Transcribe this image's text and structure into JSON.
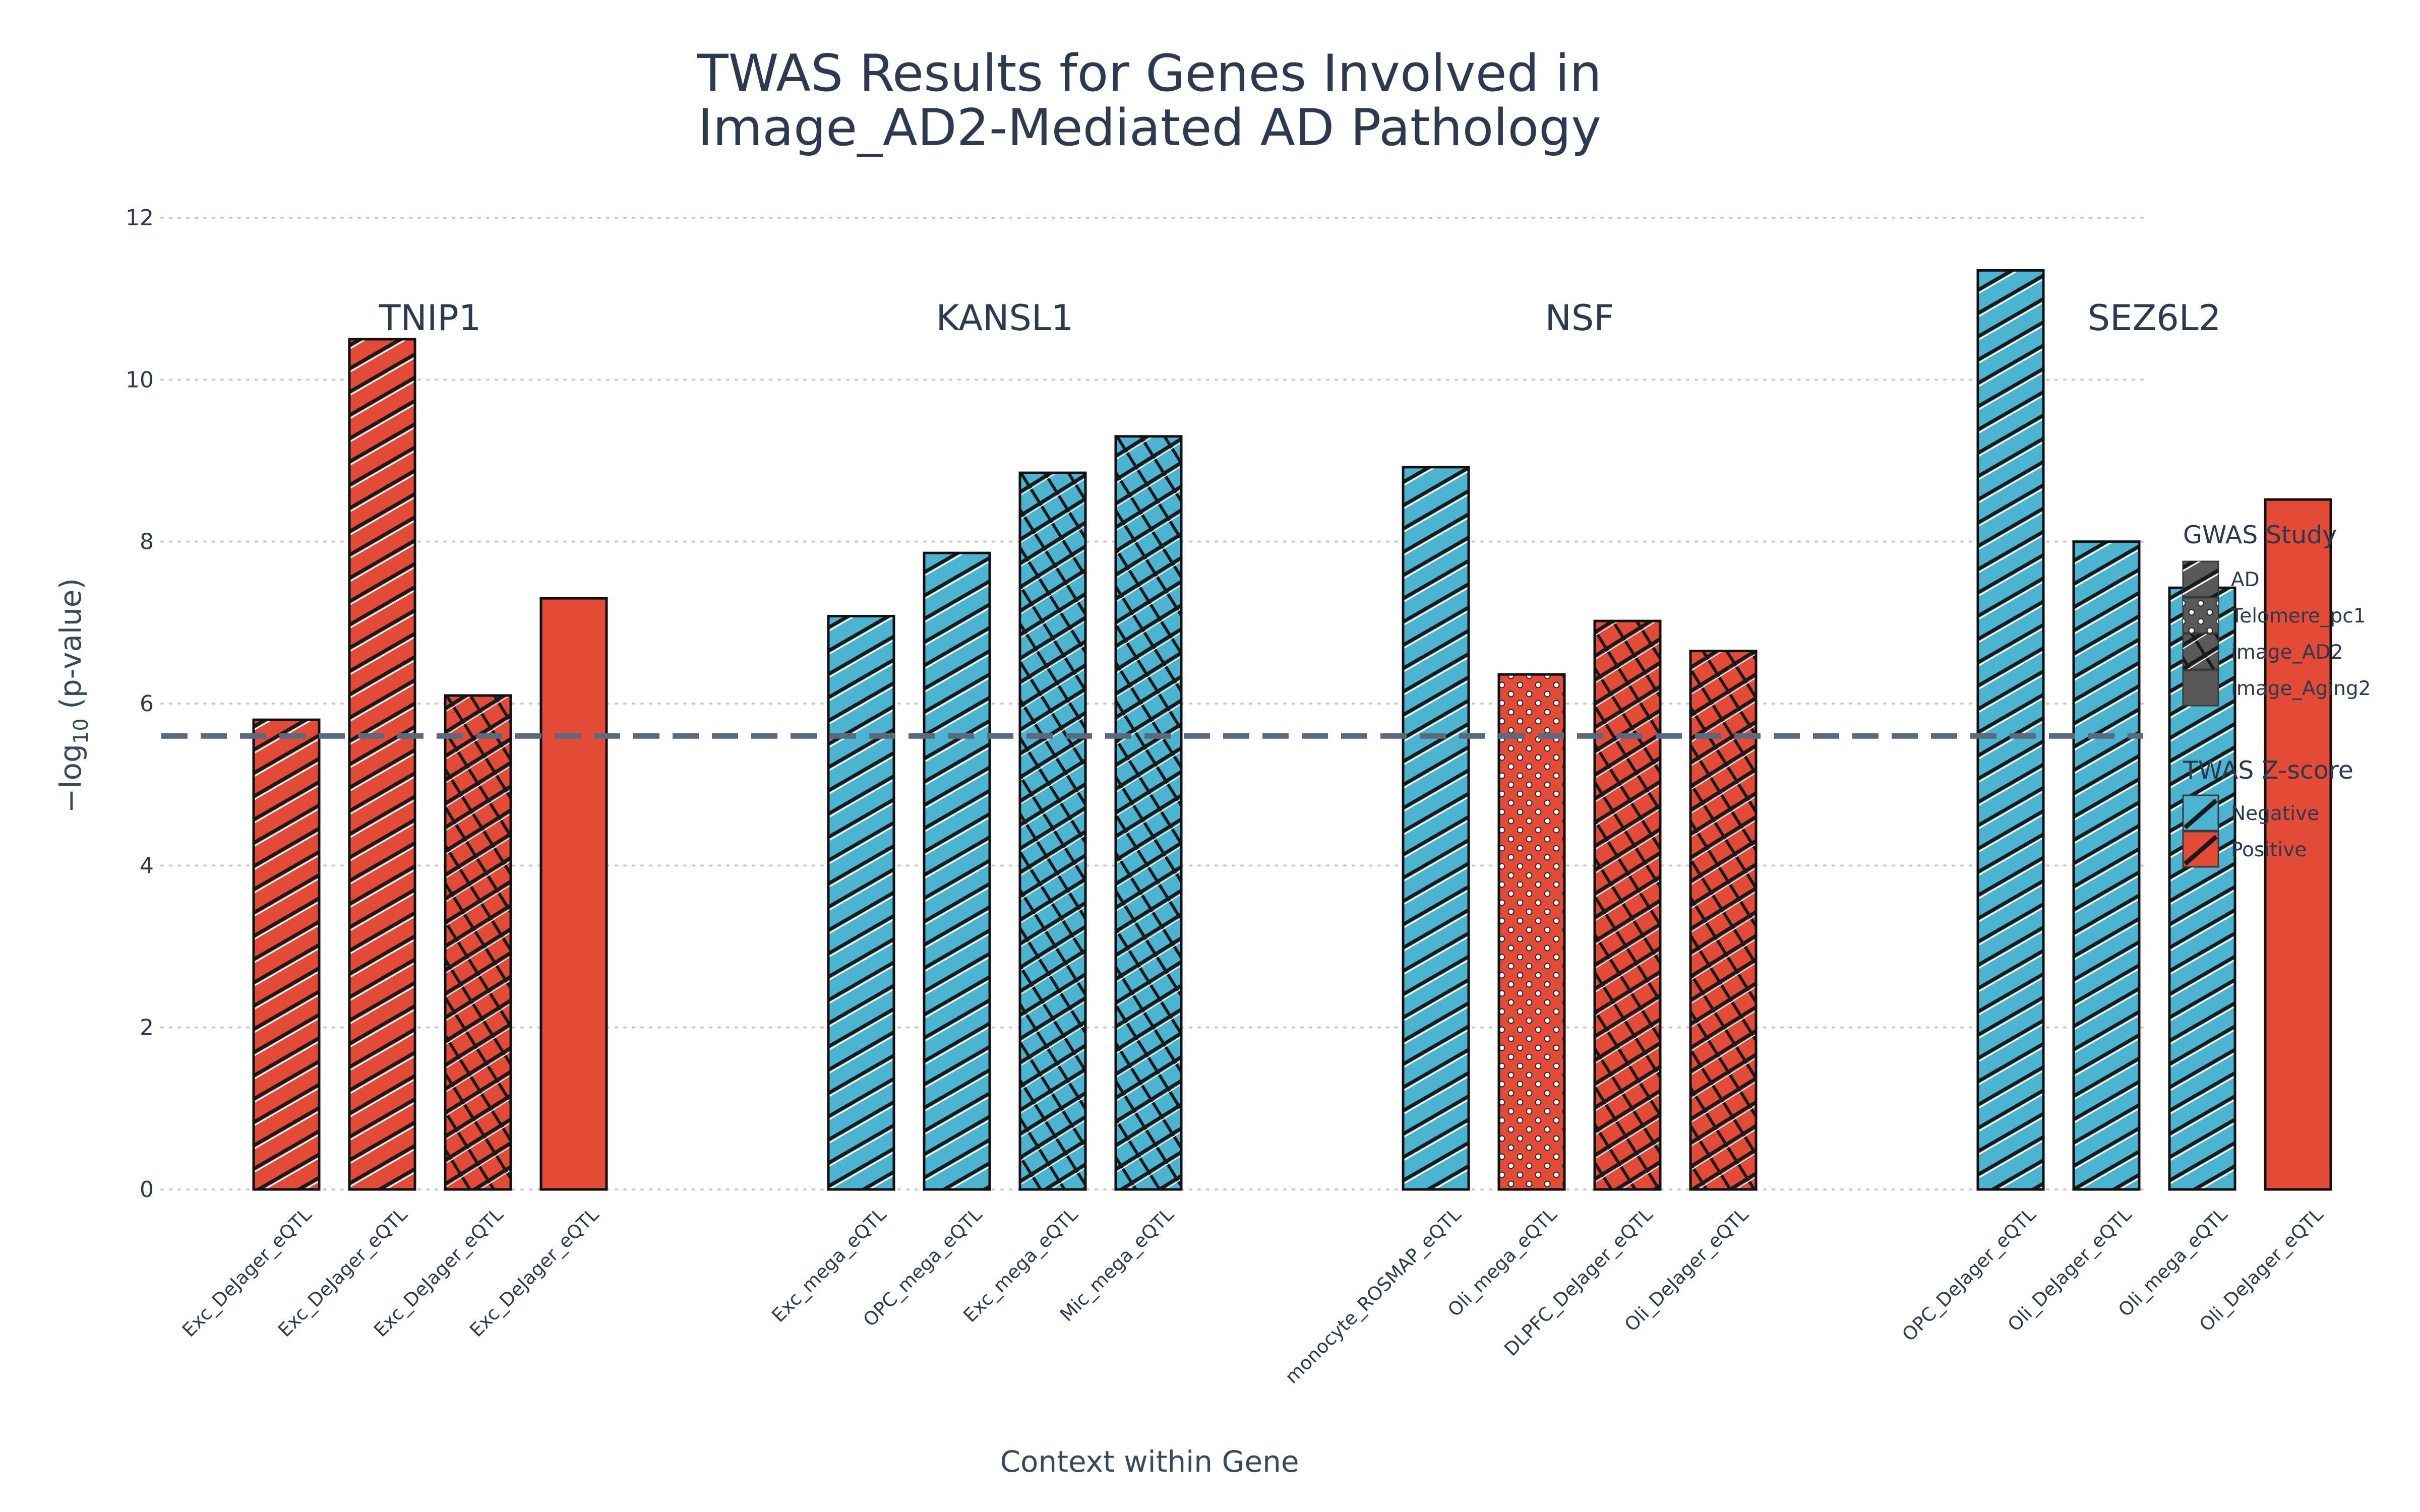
{
  "chart_data": {
    "type": "bar",
    "title_lines": [
      "TWAS Results for Genes Involved in",
      "Image_AD2-Mediated AD Pathology"
    ],
    "xlabel": "Context within Gene",
    "ylabel_prefix": "−log",
    "ylabel_sub": "10",
    "ylabel_suffix": " (p-value)",
    "ylim": [
      0,
      12
    ],
    "yticks": [
      0,
      2,
      4,
      6,
      8,
      10,
      12
    ],
    "grid": "horizontal dotted",
    "threshold": 5.6,
    "groups": [
      {
        "gene": "TNIP1",
        "bars": [
          {
            "context": "Exc_DeJager_eQTL",
            "value": 5.8,
            "study": "AD",
            "zscore": "Positive"
          },
          {
            "context": "Exc_DeJager_eQTL",
            "value": 10.5,
            "study": "AD",
            "zscore": "Positive"
          },
          {
            "context": "Exc_DeJager_eQTL",
            "value": 6.1,
            "study": "image_AD2",
            "zscore": "Positive"
          },
          {
            "context": "Exc_DeJager_eQTL",
            "value": 7.3,
            "study": "image_Aging2",
            "zscore": "Positive"
          }
        ]
      },
      {
        "gene": "KANSL1",
        "bars": [
          {
            "context": "Exc_mega_eQTL",
            "value": 7.08,
            "study": "AD",
            "zscore": "Negative"
          },
          {
            "context": "OPC_mega_eQTL",
            "value": 7.86,
            "study": "AD",
            "zscore": "Negative"
          },
          {
            "context": "Exc_mega_eQTL",
            "value": 8.85,
            "study": "image_AD2",
            "zscore": "Negative"
          },
          {
            "context": "Mic_mega_eQTL",
            "value": 9.3,
            "study": "image_AD2",
            "zscore": "Negative"
          }
        ]
      },
      {
        "gene": "NSF",
        "bars": [
          {
            "context": "monocyte_ROSMAP_eQTL",
            "value": 8.92,
            "study": "AD",
            "zscore": "Negative"
          },
          {
            "context": "Oli_mega_eQTL",
            "value": 6.36,
            "study": "Telomere_pc1",
            "zscore": "Positive"
          },
          {
            "context": "DLPFC_DeJager_eQTL",
            "value": 7.02,
            "study": "image_AD2",
            "zscore": "Positive"
          },
          {
            "context": "Oli_DeJager_eQTL",
            "value": 6.65,
            "study": "image_AD2",
            "zscore": "Positive"
          }
        ]
      },
      {
        "gene": "SEZ6L2",
        "bars": [
          {
            "context": "OPC_DeJager_eQTL",
            "value": 11.35,
            "study": "AD",
            "zscore": "Negative"
          },
          {
            "context": "Oli_DeJager_eQTL",
            "value": 8.0,
            "study": "AD",
            "zscore": "Negative"
          },
          {
            "context": "Oli_mega_eQTL",
            "value": 7.43,
            "study": "AD",
            "zscore": "Negative"
          },
          {
            "context": "Oli_DeJager_eQTL",
            "value": 8.52,
            "study": "image_Aging2",
            "zscore": "Positive"
          }
        ]
      }
    ],
    "legend_position": "right",
    "legends": {
      "study": {
        "title": "GWAS Study",
        "items": [
          "AD",
          "Telomere_pc1",
          "image_AD2",
          "image_Aging2"
        ]
      },
      "zscore": {
        "title": "TWAS Z-score",
        "items": [
          "Negative",
          "Positive"
        ]
      }
    },
    "colors": {
      "Negative": "#4bb5d1",
      "Positive": "#e34b36",
      "legend_fill": "#595959",
      "threshold": "#5a6a7e",
      "grid": "#c8c8c8",
      "text": "#2b3a4e"
    }
  }
}
